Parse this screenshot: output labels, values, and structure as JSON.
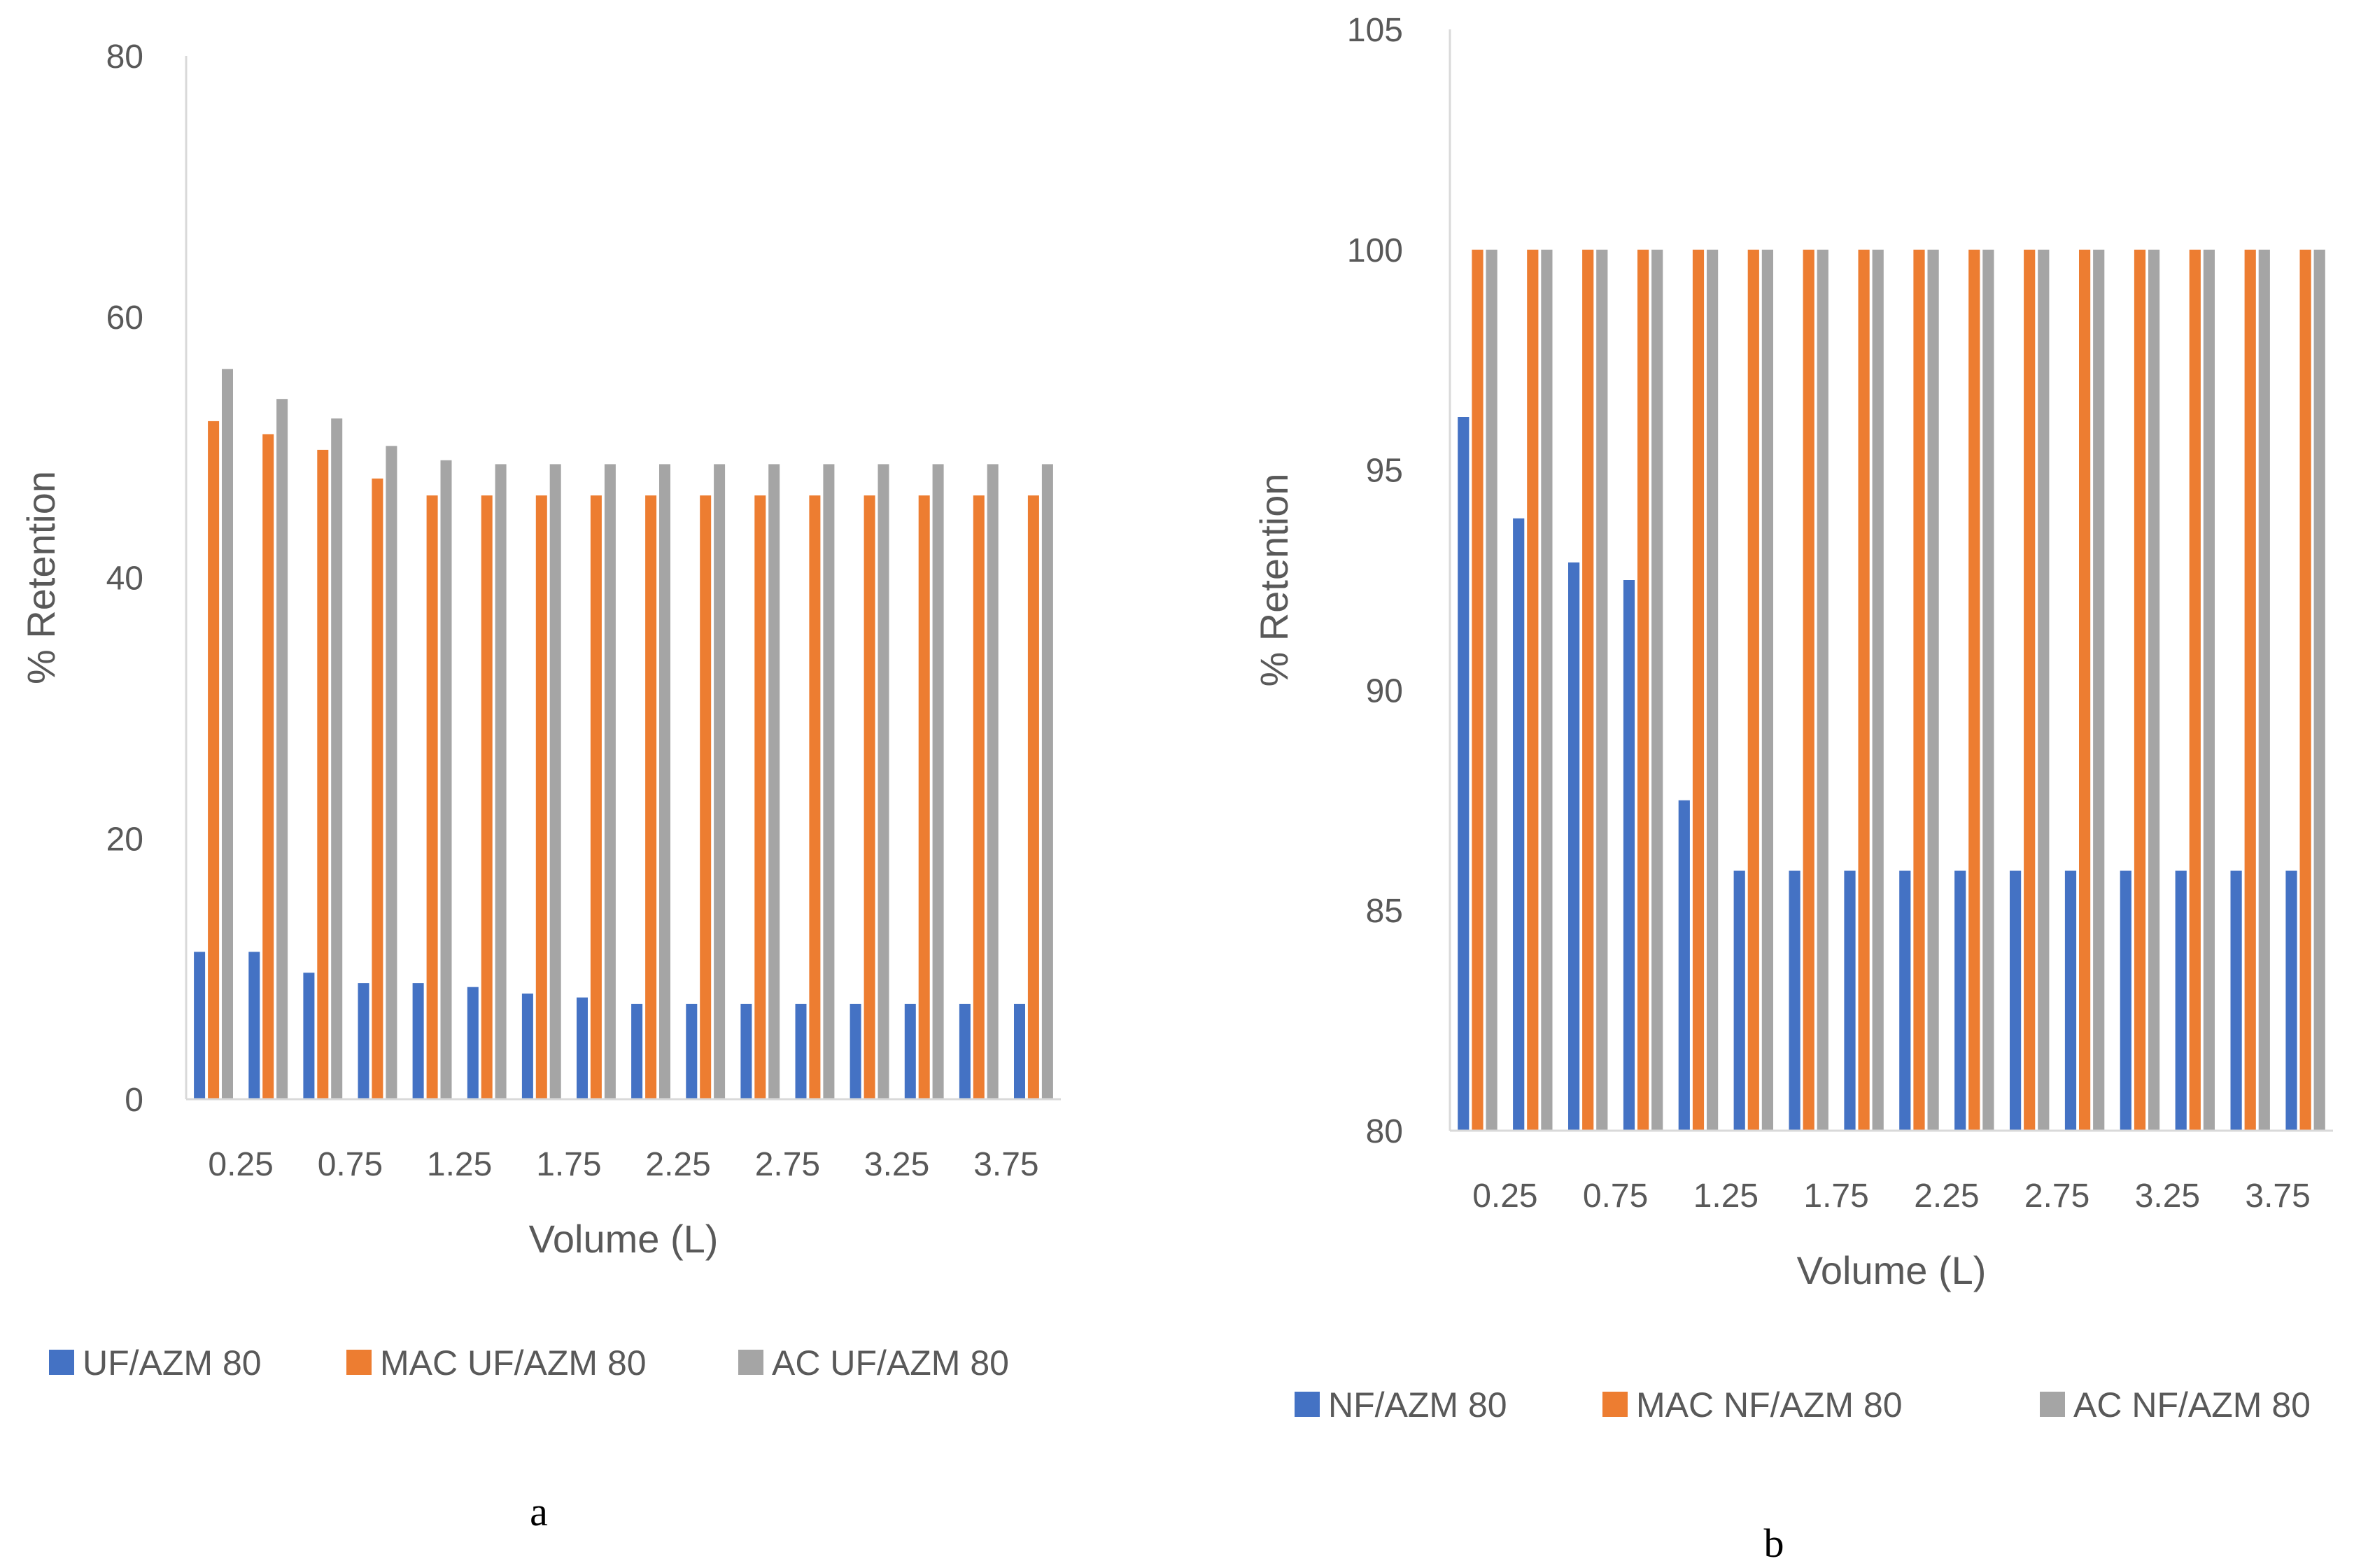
{
  "chart_data": [
    {
      "type": "bar",
      "panel_label": "a",
      "title": "",
      "xlabel": "Volume (L)",
      "ylabel": "% Retention",
      "ylim": [
        0,
        80
      ],
      "yticks": [
        0,
        20,
        40,
        60,
        80
      ],
      "grid": false,
      "legend_position": "bottom",
      "categories": [
        "0.25",
        "0.5",
        "0.75",
        "1",
        "1.25",
        "1.5",
        "1.75",
        "2",
        "2.25",
        "2.5",
        "2.75",
        "3",
        "3.25",
        "3.5",
        "3.75",
        "4"
      ],
      "tick_labels": [
        "0.25",
        "0.75",
        "1.25",
        "1.75",
        "2.25",
        "2.75",
        "3.25",
        "3.75"
      ],
      "series": [
        {
          "name": "UF/AZM 80",
          "color": "#4472C4",
          "values": [
            11.3,
            11.3,
            9.7,
            8.9,
            8.9,
            8.6,
            8.1,
            7.8,
            7.3,
            7.3,
            7.3,
            7.3,
            7.3,
            7.3,
            7.3,
            7.3
          ]
        },
        {
          "name": "MAC UF/AZM 80",
          "color": "#ED7D31",
          "values": [
            52,
            51,
            49.8,
            47.6,
            46.3,
            46.3,
            46.3,
            46.3,
            46.3,
            46.3,
            46.3,
            46.3,
            46.3,
            46.3,
            46.3,
            46.3
          ]
        },
        {
          "name": "AC UF/AZM 80",
          "color": "#A5A5A5",
          "values": [
            56,
            53.7,
            52.2,
            50.1,
            49,
            48.7,
            48.7,
            48.7,
            48.7,
            48.7,
            48.7,
            48.7,
            48.7,
            48.7,
            48.7,
            48.7
          ]
        }
      ]
    },
    {
      "type": "bar",
      "panel_label": "b",
      "title": "",
      "xlabel": "Volume (L)",
      "ylabel": "% Retention",
      "ylim": [
        80,
        105
      ],
      "yticks": [
        80,
        85,
        90,
        95,
        100,
        105
      ],
      "grid": false,
      "legend_position": "bottom",
      "categories": [
        "0.25",
        "0.5",
        "0.75",
        "1",
        "1.25",
        "1.5",
        "1.75",
        "2",
        "2.25",
        "2.5",
        "2.75",
        "3",
        "3.25",
        "3.5",
        "3.75",
        "4"
      ],
      "tick_labels": [
        "0.25",
        "0.75",
        "1.25",
        "1.75",
        "2.25",
        "2.75",
        "3.25",
        "3.75"
      ],
      "series": [
        {
          "name": "NF/AZM 80",
          "color": "#4472C4",
          "values": [
            96.2,
            93.9,
            92.9,
            92.5,
            87.5,
            85.9,
            85.9,
            85.9,
            85.9,
            85.9,
            85.9,
            85.9,
            85.9,
            85.9,
            85.9,
            85.9
          ]
        },
        {
          "name": "MAC NF/AZM 80",
          "color": "#ED7D31",
          "values": [
            100,
            100,
            100,
            100,
            100,
            100,
            100,
            100,
            100,
            100,
            100,
            100,
            100,
            100,
            100,
            100
          ]
        },
        {
          "name": "AC NF/AZM 80",
          "color": "#A5A5A5",
          "values": [
            100,
            100,
            100,
            100,
            100,
            100,
            100,
            100,
            100,
            100,
            100,
            100,
            100,
            100,
            100,
            100
          ]
        }
      ]
    }
  ]
}
